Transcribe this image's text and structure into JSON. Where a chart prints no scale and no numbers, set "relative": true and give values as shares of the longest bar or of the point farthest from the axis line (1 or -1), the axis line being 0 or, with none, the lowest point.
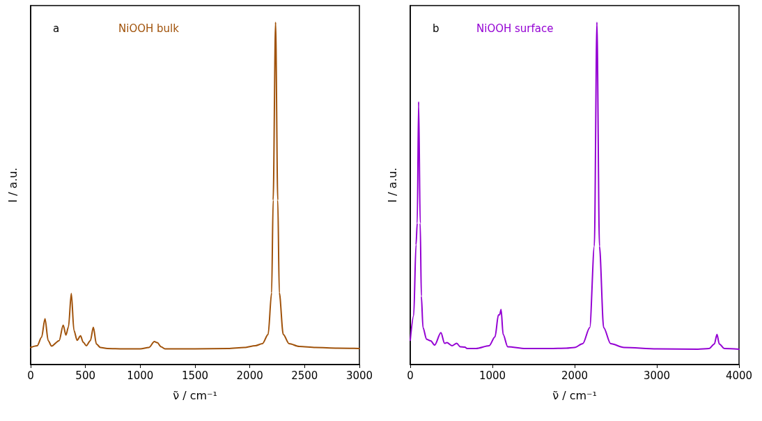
{
  "chart_data": [
    {
      "type": "line",
      "relative": true,
      "xlabel": "ν̃ / cm⁻¹",
      "ylabel": "I / a.u.",
      "annotations": [
        "a"
      ],
      "xlim": [
        0,
        3000
      ],
      "xticks": [
        0,
        500,
        1000,
        1500,
        2000,
        2500,
        3000
      ],
      "grid": false,
      "legend": false,
      "marker": "none",
      "line_style": "solid",
      "tick_labels": "x",
      "series": [
        {
          "name": "NiOOH bulk",
          "color": "#a0520a",
          "x": [
            0,
            60,
            100,
            131,
            160,
            191,
            260,
            297,
            322,
            345,
            371,
            395,
            424,
            455,
            480,
            508,
            545,
            572,
            600,
            636,
            700,
            845,
            1000,
            1080,
            1129,
            1155,
            1190,
            1226,
            1500,
            1800,
            1950,
            2050,
            2115,
            2167,
            2199,
            2213,
            2235,
            2255,
            2269,
            2305,
            2358,
            2450,
            2600,
            2800,
            3000
          ],
          "values": [
            0.05,
            0.055,
            0.08,
            0.134,
            0.07,
            0.054,
            0.07,
            0.115,
            0.086,
            0.11,
            0.208,
            0.1,
            0.071,
            0.084,
            0.065,
            0.055,
            0.07,
            0.109,
            0.06,
            0.05,
            0.047,
            0.046,
            0.046,
            0.05,
            0.067,
            0.064,
            0.052,
            0.046,
            0.046,
            0.047,
            0.05,
            0.055,
            0.061,
            0.088,
            0.21,
            0.48,
            1.0,
            0.48,
            0.21,
            0.088,
            0.061,
            0.053,
            0.05,
            0.048,
            0.047
          ]
        }
      ]
    },
    {
      "type": "line",
      "relative": true,
      "xlabel": "ν̃ / cm⁻¹",
      "ylabel": "I / a.u.",
      "annotations": [
        "b"
      ],
      "xlim": [
        0,
        4000
      ],
      "xticks": [
        0,
        1000,
        2000,
        3000,
        4000
      ],
      "grid": false,
      "legend": false,
      "marker": "none",
      "line_style": "solid",
      "tick_labels": "x",
      "series": [
        {
          "name": "NiOOH surface",
          "color": "#9400d3",
          "x": [
            0,
            42,
            70,
            85,
            102,
            121,
            135,
            155,
            198,
            249,
            297,
            373,
            418,
            446,
            508,
            565,
            608,
            664,
            692,
            800,
            960,
            1031,
            1073,
            1087,
            1105,
            1130,
            1186,
            1400,
            1695,
            1900,
            2000,
            2099,
            2184,
            2240,
            2271,
            2302,
            2353,
            2438,
            2600,
            3000,
            3500,
            3638,
            3700,
            3732,
            3760,
            3820,
            4000
          ],
          "values": [
            0.071,
            0.143,
            0.35,
            0.413,
            0.768,
            0.413,
            0.2,
            0.108,
            0.074,
            0.069,
            0.057,
            0.093,
            0.062,
            0.064,
            0.055,
            0.062,
            0.052,
            0.051,
            0.047,
            0.047,
            0.055,
            0.081,
            0.145,
            0.145,
            0.161,
            0.088,
            0.052,
            0.047,
            0.047,
            0.048,
            0.05,
            0.061,
            0.108,
            0.346,
            1.0,
            0.346,
            0.108,
            0.061,
            0.05,
            0.046,
            0.045,
            0.047,
            0.06,
            0.088,
            0.06,
            0.047,
            0.045
          ]
        }
      ]
    }
  ]
}
